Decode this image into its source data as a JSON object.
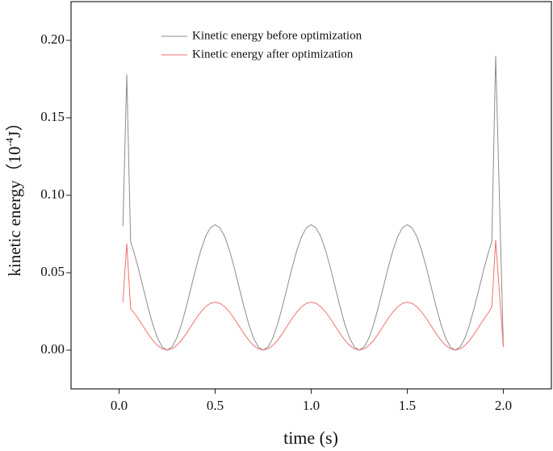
{
  "chart_data": {
    "type": "line",
    "y_label": {
      "text": "kinetic energy（10",
      "superscript": "-4",
      "unit": "J）"
    },
    "x_label": "time (s)",
    "x": [
      0.02,
      0.04,
      0.06,
      0.075,
      0.1,
      0.125,
      0.15,
      0.175,
      0.2,
      0.225,
      0.25,
      0.275,
      0.3,
      0.325,
      0.35,
      0.375,
      0.4,
      0.425,
      0.45,
      0.475,
      0.5,
      0.525,
      0.55,
      0.575,
      0.6,
      0.625,
      0.65,
      0.675,
      0.7,
      0.725,
      0.75,
      0.775,
      0.8,
      0.825,
      0.85,
      0.875,
      0.9,
      0.925,
      0.95,
      0.975,
      1.0,
      1.025,
      1.05,
      1.075,
      1.1,
      1.125,
      1.15,
      1.175,
      1.2,
      1.225,
      1.25,
      1.275,
      1.3,
      1.325,
      1.35,
      1.375,
      1.4,
      1.425,
      1.45,
      1.475,
      1.5,
      1.525,
      1.55,
      1.575,
      1.6,
      1.625,
      1.65,
      1.675,
      1.7,
      1.725,
      1.75,
      1.775,
      1.8,
      1.825,
      1.85,
      1.875,
      1.9,
      1.925,
      1.94,
      1.96,
      2.0
    ],
    "series": [
      {
        "name": "Kinetic energy before optimization",
        "color": "#8c8c8c",
        "values": [
          0.08,
          0.178,
          0.07,
          0.0643,
          0.053,
          0.0405,
          0.028,
          0.0167,
          0.0077,
          0.002,
          0,
          0.002,
          0.0077,
          0.0167,
          0.028,
          0.0405,
          0.053,
          0.0643,
          0.0733,
          0.079,
          0.081,
          0.079,
          0.0733,
          0.0643,
          0.053,
          0.0405,
          0.028,
          0.0167,
          0.0077,
          0.002,
          0,
          0.002,
          0.0077,
          0.0167,
          0.028,
          0.0405,
          0.053,
          0.0643,
          0.0733,
          0.079,
          0.081,
          0.079,
          0.0733,
          0.0643,
          0.053,
          0.0405,
          0.028,
          0.0167,
          0.0077,
          0.002,
          0,
          0.002,
          0.0077,
          0.0167,
          0.028,
          0.0405,
          0.053,
          0.0643,
          0.0733,
          0.079,
          0.081,
          0.079,
          0.0733,
          0.0643,
          0.053,
          0.0405,
          0.028,
          0.0167,
          0.0077,
          0.002,
          0,
          0.002,
          0.0077,
          0.0167,
          0.028,
          0.0405,
          0.053,
          0.0643,
          0.07,
          0.19,
          0.002
        ]
      },
      {
        "name": "Kinetic energy after optimization",
        "color": "#f07070",
        "values": [
          0.031,
          0.069,
          0.0267,
          0.0246,
          0.0203,
          0.0155,
          0.0107,
          0.0064,
          0.003,
          0.0008,
          0,
          0.0008,
          0.003,
          0.0064,
          0.0107,
          0.0155,
          0.0203,
          0.0246,
          0.028,
          0.0302,
          0.031,
          0.0302,
          0.028,
          0.0246,
          0.0203,
          0.0155,
          0.0107,
          0.0064,
          0.003,
          0.0008,
          0,
          0.0008,
          0.003,
          0.0064,
          0.0107,
          0.0155,
          0.0203,
          0.0246,
          0.028,
          0.0302,
          0.031,
          0.0302,
          0.028,
          0.0246,
          0.0203,
          0.0155,
          0.0107,
          0.0064,
          0.003,
          0.0008,
          0,
          0.0008,
          0.003,
          0.0064,
          0.0107,
          0.0155,
          0.0203,
          0.0246,
          0.028,
          0.0302,
          0.031,
          0.0302,
          0.028,
          0.0246,
          0.0203,
          0.0155,
          0.0107,
          0.0064,
          0.003,
          0.0008,
          0,
          0.0008,
          0.003,
          0.0064,
          0.0107,
          0.0155,
          0.0203,
          0.0246,
          0.028,
          0.071,
          0.002
        ]
      }
    ],
    "xlim": [
      -0.25,
      2.25
    ],
    "ylim": [
      -0.025,
      0.225
    ],
    "xticks": [
      {
        "value": 0,
        "label": "0.0"
      },
      0.5,
      {
        "value": 1,
        "label": "1.0"
      },
      1.5,
      {
        "value": 2,
        "label": "2.0"
      }
    ],
    "yticks": [
      {
        "value": 0,
        "label": "0.00"
      },
      0.05,
      {
        "value": 0.1,
        "label": "0.10"
      },
      0.15,
      {
        "value": 0.2,
        "label": "0.20"
      }
    ],
    "legend": "upper center"
  }
}
